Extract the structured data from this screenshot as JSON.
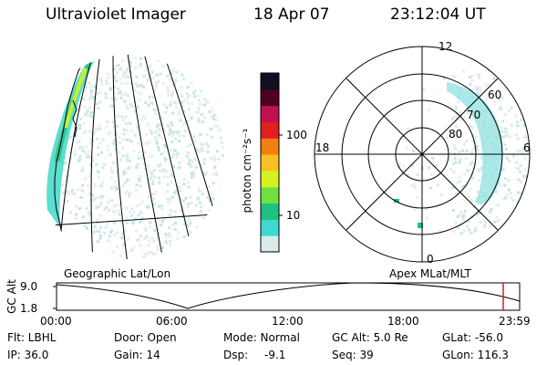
{
  "header": {
    "instrument": "Ultraviolet Imager",
    "date": "18 Apr 07",
    "time": "23:12:04 UT"
  },
  "colorbar": {
    "unit_label": "photon cm⁻²s⁻¹",
    "tick_100": "100",
    "tick_10": "10",
    "colors": [
      "#d8ecec",
      "#40d8d0",
      "#20c080",
      "#70e040",
      "#d8f020",
      "#f8c020",
      "#f08010",
      "#e02020",
      "#c01050",
      "#500020",
      "#101020"
    ]
  },
  "left_panel": {
    "label": "Geographic Lat/Lon"
  },
  "right_panel": {
    "label": "Apex  MLat/MLT",
    "mlt_labels": {
      "top": "12",
      "left": "18",
      "right": "6",
      "bottom": "0"
    },
    "lat_labels": [
      "60",
      "70",
      "80"
    ]
  },
  "altitude_plot": {
    "ylabel": "GC Alt",
    "y_ticks": [
      "9.0",
      "1.8"
    ],
    "x_ticks": [
      "00:00",
      "06:00",
      "12:00",
      "18:00",
      "23:59"
    ],
    "marker_color": "#d02020"
  },
  "info": {
    "flt": "Flt: LBHL",
    "ip": "IP: 36.0",
    "door": "Door: Open",
    "gain": "Gain: 14",
    "mode": "Mode: Normal",
    "dsp_label": "Dsp:",
    "dsp_value": "-9.1",
    "gcalt": "GC Alt: 5.0 Re",
    "seq": "Seq: 39",
    "glat": "GLat: -56.0",
    "glon": "GLon: 116.3"
  }
}
